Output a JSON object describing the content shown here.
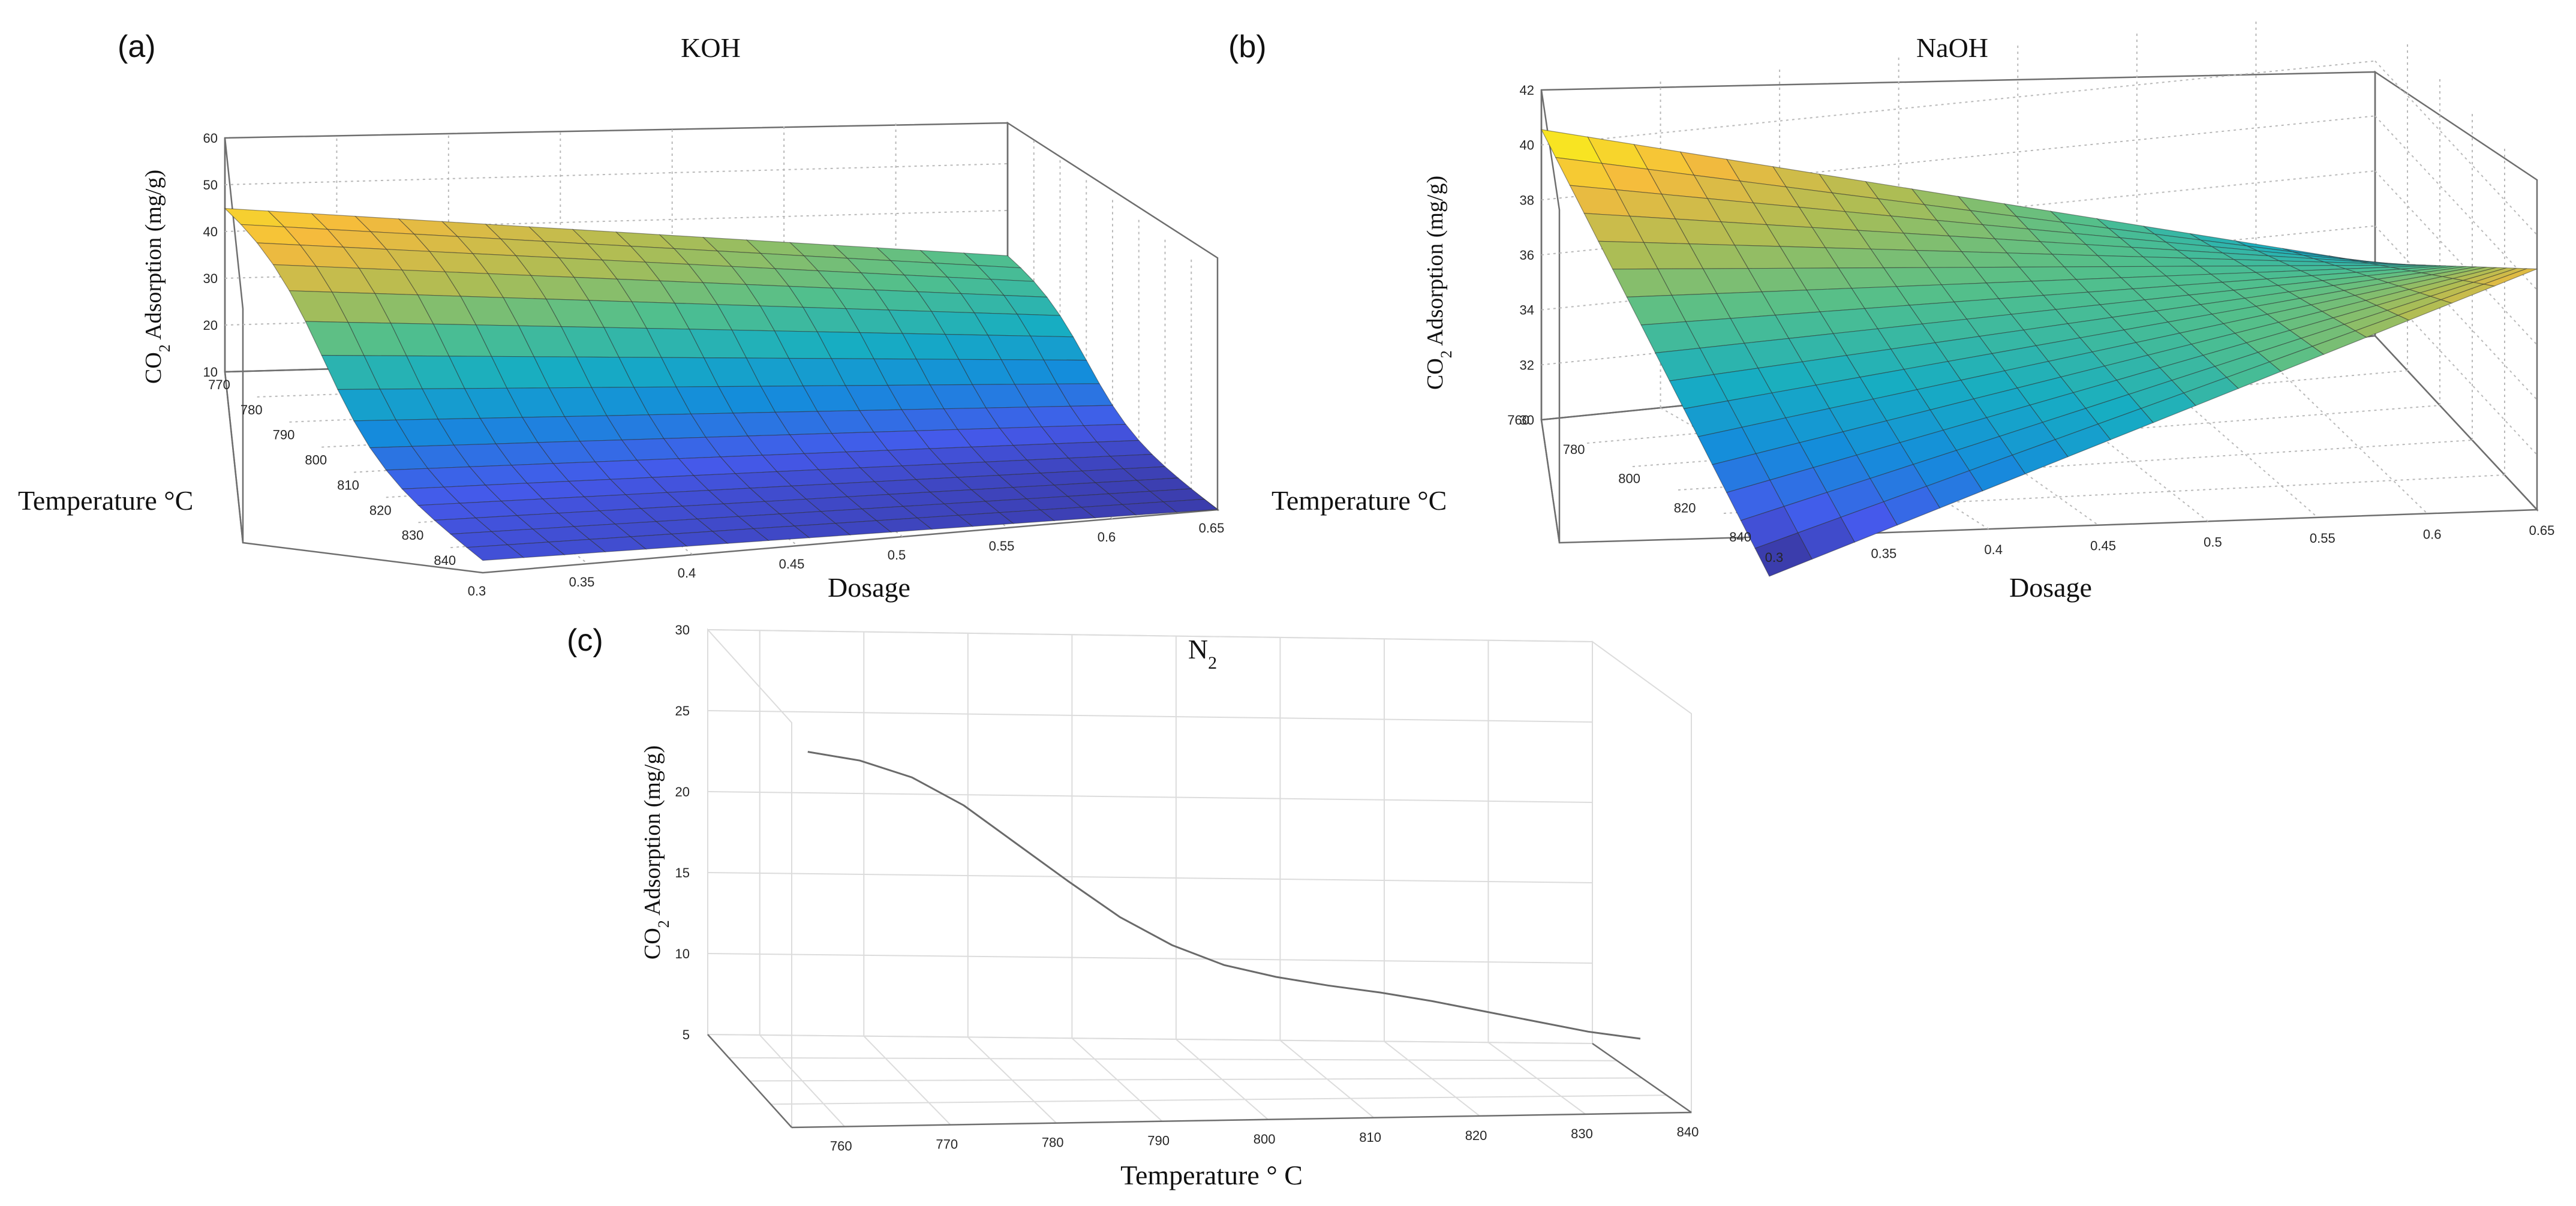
{
  "chart_data": [
    {
      "panel_label": "(a)",
      "type": "surface",
      "title": "KOH",
      "xlabel": "Dosage",
      "ylabel": "Temperature °C",
      "zlabel": "CO₂ Adsorption (mg/g)",
      "x_ticks": [
        "0.3",
        "0.35",
        "0.4",
        "0.45",
        "0.5",
        "0.55",
        "0.6",
        "0.65"
      ],
      "y_ticks": [
        "770",
        "780",
        "790",
        "800",
        "810",
        "820",
        "830",
        "840"
      ],
      "z_ticks": [
        "10",
        "20",
        "30",
        "40",
        "50",
        "60"
      ],
      "xlim": [
        0.3,
        0.65
      ],
      "ylim": [
        765,
        840
      ],
      "zlim": [
        10,
        60
      ],
      "grid": true,
      "surface": {
        "description": "CO2 adsorption decreasing with dosage and temperature",
        "corners": {
          "dosage_0.3_temp_765": 45,
          "dosage_0.65_temp_765": 31,
          "dosage_0.3_temp_840": 9,
          "dosage_0.65_temp_840": 8
        }
      }
    },
    {
      "panel_label": "(b)",
      "type": "surface",
      "title": "NaOH",
      "xlabel": "Dosage",
      "ylabel": "Temperature °C",
      "zlabel": "CO₂ Adsorption (mg/g)",
      "x_ticks": [
        "0.3",
        "0.35",
        "0.4",
        "0.45",
        "0.5",
        "0.55",
        "0.6",
        "0.65"
      ],
      "y_ticks": [
        "760",
        "780",
        "800",
        "820",
        "840"
      ],
      "z_ticks": [
        "30",
        "32",
        "34",
        "36",
        "38",
        "40",
        "42"
      ],
      "xlim": [
        0.3,
        0.65
      ],
      "ylim": [
        760,
        840
      ],
      "zlim": [
        30,
        42
      ],
      "grid": true,
      "surface": {
        "description": "Saddle surface: high at low dosage/low temperature and high dosage/high temperature",
        "corners": {
          "dosage_0.3_temp_760": 40.5,
          "dosage_0.65_temp_760": 32.2,
          "dosage_0.3_temp_840": 28.5,
          "dosage_0.65_temp_840": 38.7
        }
      }
    },
    {
      "panel_label": "(c)",
      "type": "line",
      "title": "N₂",
      "xlabel": "Temperature ° C",
      "zlabel": "CO₂ Adsorption (mg/g)",
      "x_ticks": [
        "760",
        "770",
        "780",
        "790",
        "800",
        "810",
        "820",
        "830",
        "840"
      ],
      "z_ticks": [
        "5",
        "10",
        "15",
        "20",
        "25",
        "30"
      ],
      "xlim": [
        755,
        840
      ],
      "zlim": [
        5,
        30
      ],
      "grid": true,
      "series": [
        {
          "name": "N2",
          "x": [
            760,
            765,
            770,
            775,
            780,
            785,
            790,
            795,
            800,
            805,
            810,
            815,
            820,
            825,
            830,
            835,
            840
          ],
          "values": [
            22.5,
            22.0,
            21.0,
            19.3,
            17.0,
            14.7,
            12.5,
            10.8,
            9.6,
            8.9,
            8.4,
            8.0,
            7.5,
            6.9,
            6.3,
            5.7,
            5.3
          ]
        }
      ]
    }
  ]
}
